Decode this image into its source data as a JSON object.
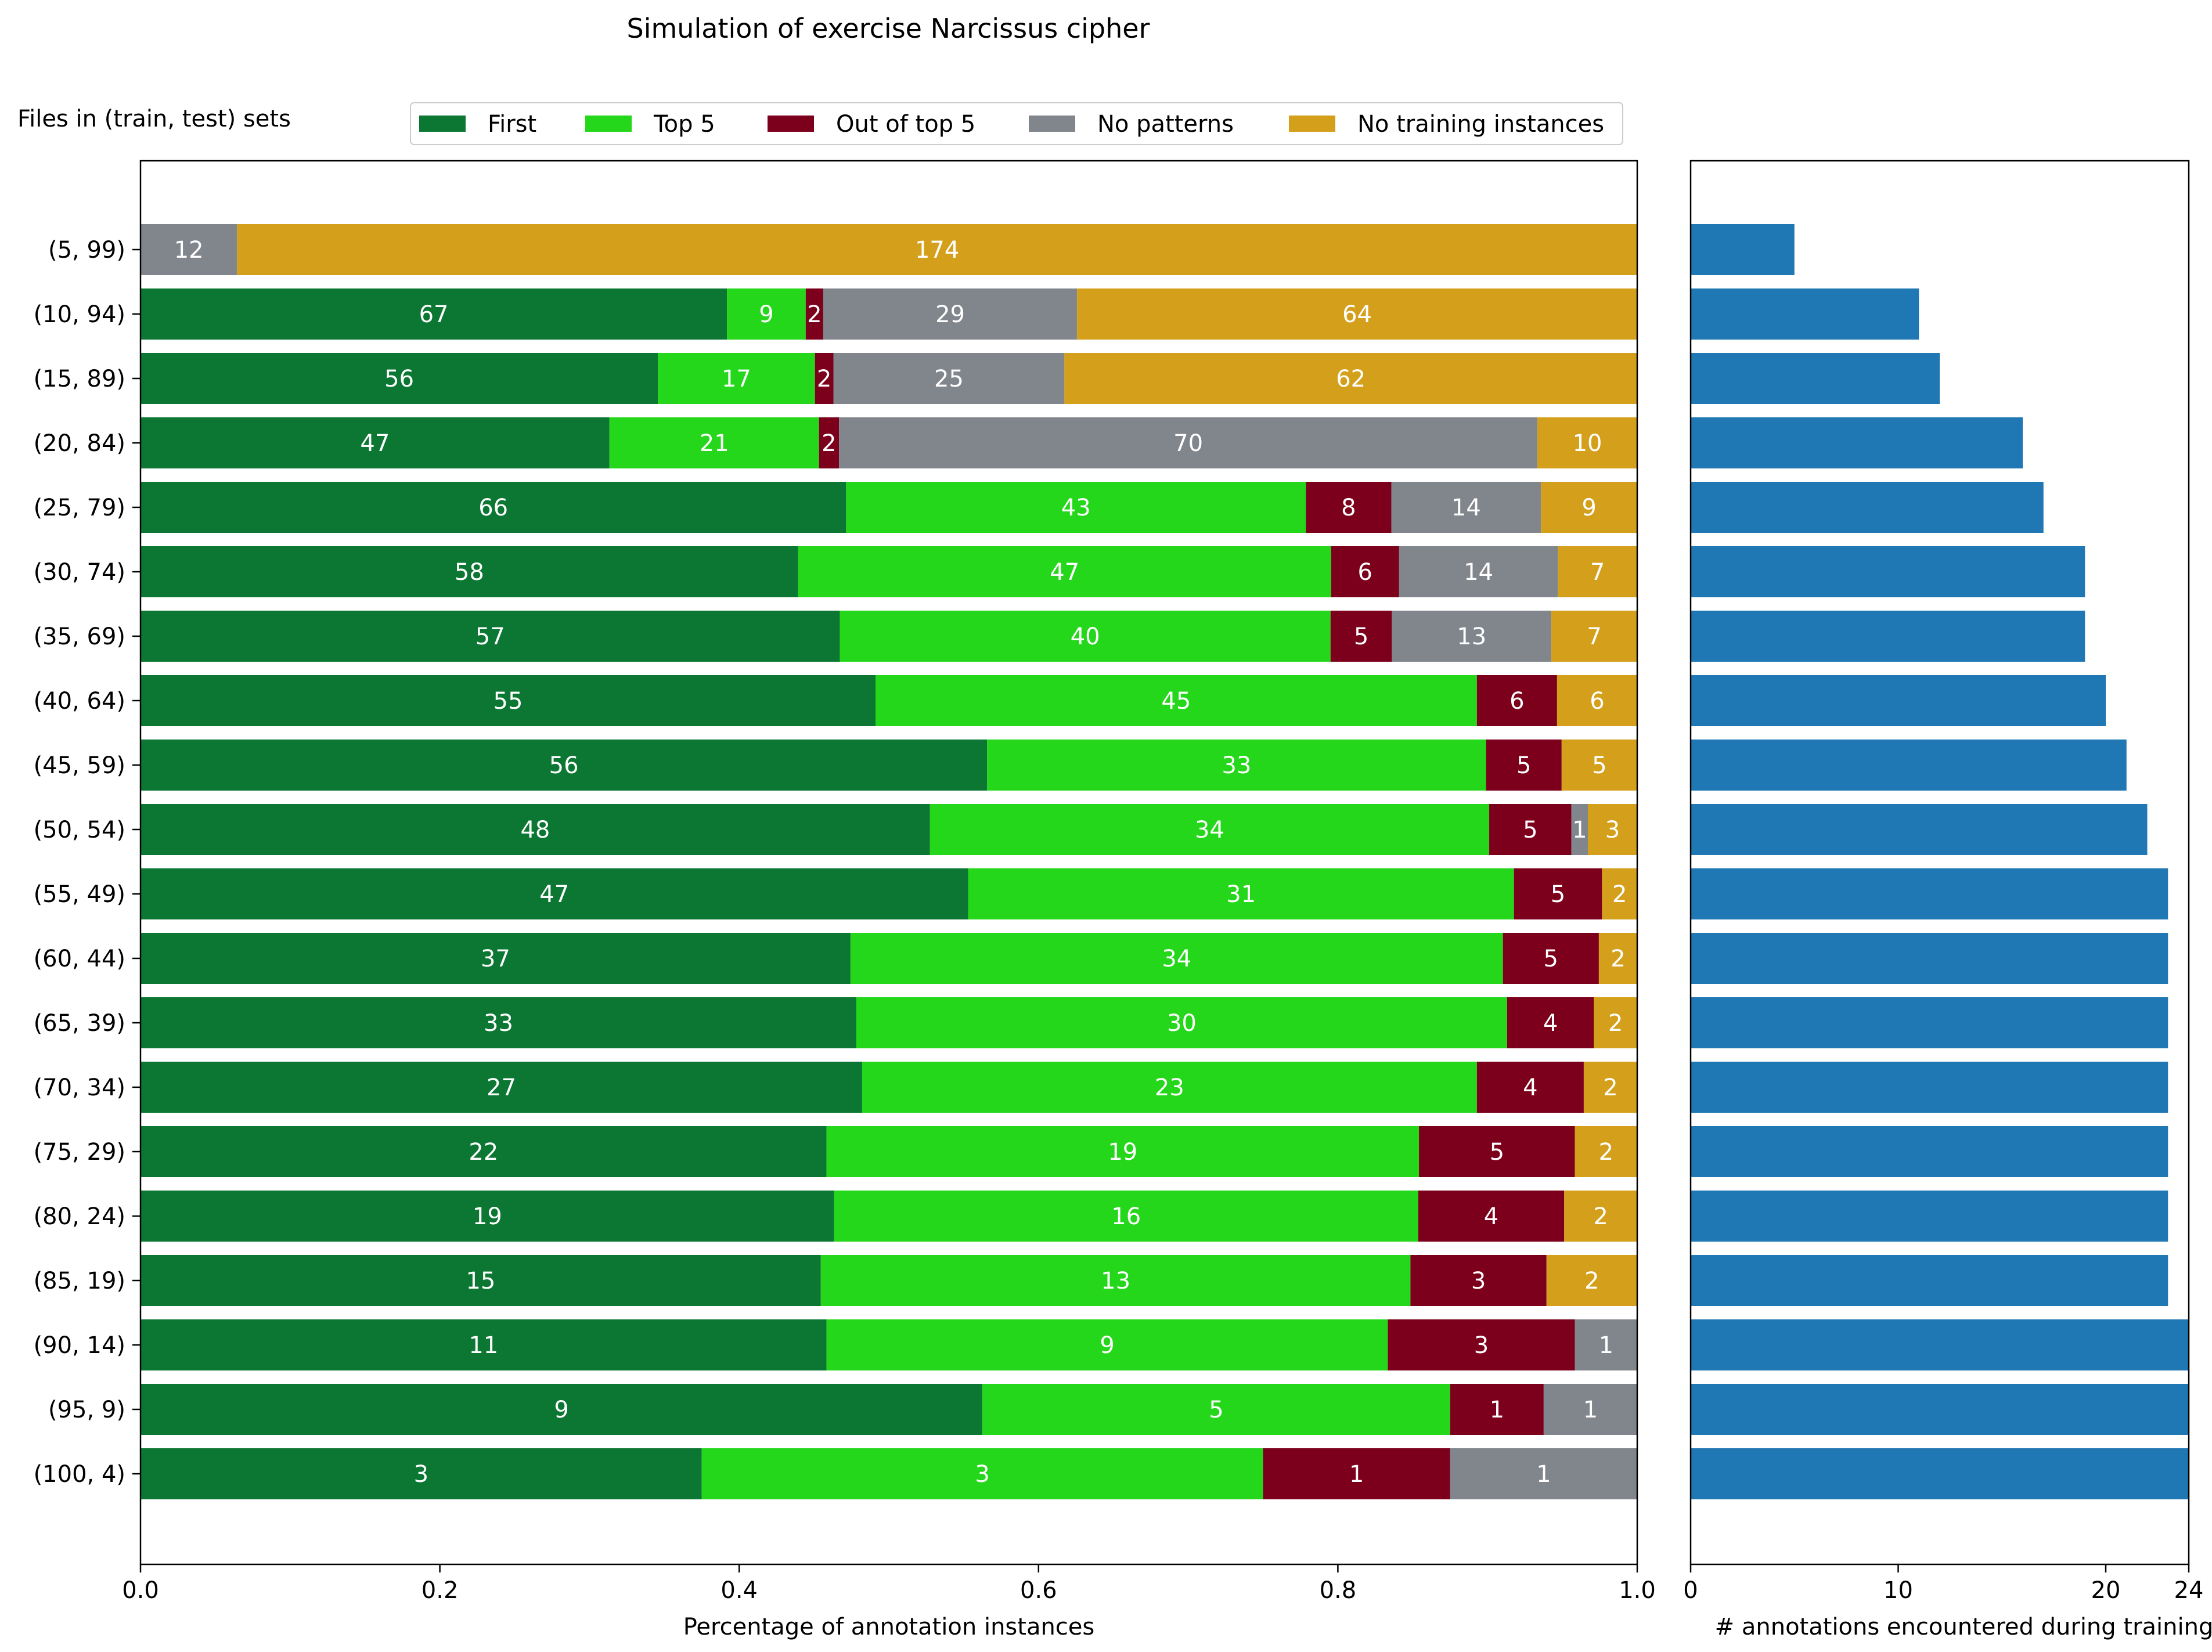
{
  "chart_data": [
    {
      "type": "bar",
      "orientation": "horizontal",
      "stacked": true,
      "normalized": true,
      "title": "Simulation of exercise Narcissus cipher",
      "y_title": "Files in (train, test) sets",
      "xlabel": "Percentage of annotation instances",
      "xlim": [
        0.0,
        1.0
      ],
      "xticks": [
        "0.0",
        "0.2",
        "0.4",
        "0.6",
        "0.8",
        "1.0"
      ],
      "legend_position": "top",
      "categories": [
        "(5, 99)",
        "(10, 94)",
        "(15, 89)",
        "(20, 84)",
        "(25, 79)",
        "(30, 74)",
        "(35, 69)",
        "(40, 64)",
        "(45, 59)",
        "(50, 54)",
        "(55, 49)",
        "(60, 44)",
        "(65, 39)",
        "(70, 34)",
        "(75, 29)",
        "(80, 24)",
        "(85, 19)",
        "(90, 14)",
        "(95, 9)",
        "(100, 4)"
      ],
      "series": [
        {
          "name": "First",
          "color": "#0b7733",
          "values": [
            0,
            67,
            56,
            47,
            66,
            58,
            57,
            55,
            56,
            48,
            47,
            37,
            33,
            27,
            22,
            19,
            15,
            11,
            9,
            3
          ]
        },
        {
          "name": "Top 5",
          "color": "#25d71b",
          "values": [
            0,
            9,
            17,
            21,
            43,
            47,
            40,
            45,
            33,
            34,
            31,
            34,
            30,
            23,
            19,
            16,
            13,
            9,
            5,
            3
          ]
        },
        {
          "name": "Out of top 5",
          "color": "#7c001c",
          "values": [
            0,
            2,
            2,
            2,
            8,
            6,
            5,
            6,
            5,
            5,
            5,
            5,
            4,
            4,
            5,
            4,
            3,
            3,
            1,
            1
          ]
        },
        {
          "name": "No patterns",
          "color": "#81858c",
          "values": [
            12,
            29,
            25,
            70,
            14,
            14,
            13,
            0,
            0,
            1,
            0,
            0,
            0,
            0,
            0,
            0,
            0,
            1,
            1,
            1
          ]
        },
        {
          "name": "No training instances",
          "color": "#d4a01c",
          "values": [
            174,
            64,
            62,
            10,
            9,
            7,
            7,
            6,
            5,
            3,
            2,
            2,
            2,
            2,
            2,
            2,
            2,
            0,
            0,
            0
          ]
        }
      ]
    },
    {
      "type": "bar",
      "orientation": "horizontal",
      "xlabel": "# annotations encountered during training",
      "xlim": [
        0,
        24
      ],
      "xticks": [
        "0",
        "10",
        "20",
        "24"
      ],
      "color": "#1f77b4",
      "categories": [
        "(5, 99)",
        "(10, 94)",
        "(15, 89)",
        "(20, 84)",
        "(25, 79)",
        "(30, 74)",
        "(35, 69)",
        "(40, 64)",
        "(45, 59)",
        "(50, 54)",
        "(55, 49)",
        "(60, 44)",
        "(65, 39)",
        "(70, 34)",
        "(75, 29)",
        "(80, 24)",
        "(85, 19)",
        "(90, 14)",
        "(95, 9)",
        "(100, 4)"
      ],
      "values": [
        5,
        11,
        12,
        16,
        17,
        19,
        19,
        20,
        21,
        22,
        23,
        23,
        23,
        23,
        23,
        23,
        23,
        24,
        24,
        24
      ]
    }
  ]
}
